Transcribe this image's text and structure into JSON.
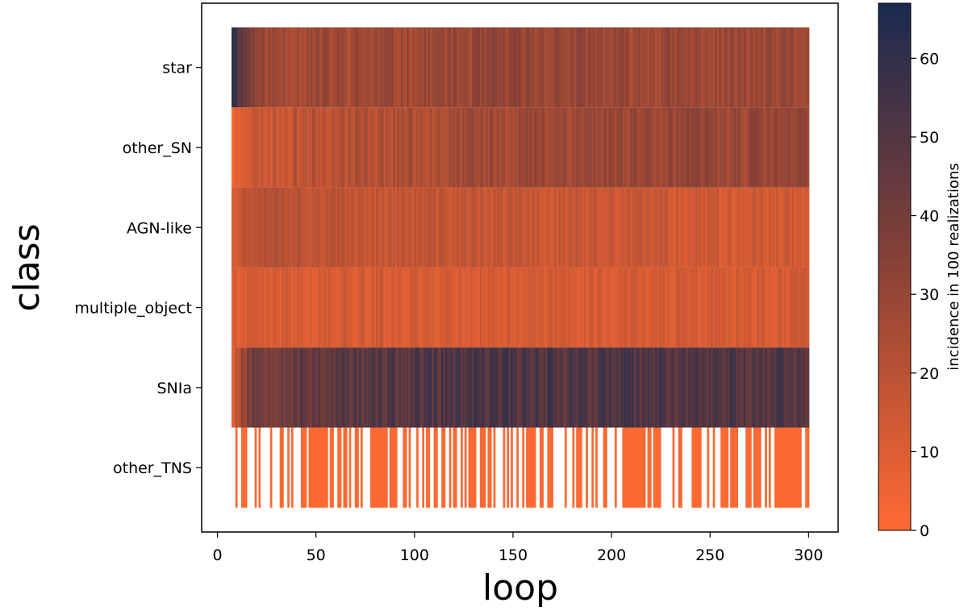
{
  "chart_data": {
    "type": "heatmap",
    "title": "",
    "xlabel": "loop",
    "ylabel": "class",
    "colorbar_label": "incidence in 100 realizations",
    "xlim": [
      -8,
      315
    ],
    "x_ticks": [
      0,
      50,
      100,
      150,
      200,
      250,
      300
    ],
    "x_tick_labels": [
      "0",
      "50",
      "100",
      "150",
      "200",
      "250",
      "300"
    ],
    "colorbar_range": [
      0,
      67
    ],
    "colorbar_ticks": [
      0,
      10,
      20,
      30,
      40,
      50,
      60
    ],
    "colorbar_tick_labels": [
      "0",
      "10",
      "20",
      "30",
      "40",
      "50",
      "60"
    ],
    "colormap": {
      "low": "#ff6a33",
      "mid": "#8a4236",
      "high": "#1a2a50"
    },
    "n_loops": 300,
    "rows": [
      {
        "name": "star",
        "profile": [
          [
            0,
            64
          ],
          [
            5,
            46
          ],
          [
            15,
            28
          ],
          [
            60,
            27
          ],
          [
            150,
            30
          ],
          [
            220,
            28
          ],
          [
            299,
            28
          ]
        ],
        "noise": 12,
        "zero_frac": 0.0,
        "seed": 11
      },
      {
        "name": "other_SN",
        "profile": [
          [
            0,
            2
          ],
          [
            5,
            14
          ],
          [
            40,
            20
          ],
          [
            150,
            28
          ],
          [
            220,
            30
          ],
          [
            299,
            29
          ]
        ],
        "noise": 12,
        "zero_frac": 0.0,
        "seed": 23
      },
      {
        "name": "AGN-like",
        "profile": [
          [
            0,
            14
          ],
          [
            15,
            24
          ],
          [
            50,
            18
          ],
          [
            150,
            16
          ],
          [
            250,
            14
          ],
          [
            299,
            14
          ]
        ],
        "noise": 10,
        "zero_frac": 0.0,
        "seed": 37
      },
      {
        "name": "multiple_object",
        "profile": [
          [
            0,
            10
          ],
          [
            50,
            12
          ],
          [
            150,
            12
          ],
          [
            250,
            12
          ],
          [
            299,
            12
          ]
        ],
        "noise": 9,
        "zero_frac": 0.0,
        "seed": 41
      },
      {
        "name": "SNIa",
        "profile": [
          [
            0,
            12
          ],
          [
            10,
            42
          ],
          [
            60,
            47
          ],
          [
            150,
            52
          ],
          [
            230,
            50
          ],
          [
            299,
            51
          ]
        ],
        "noise": 16,
        "zero_frac": 0.0,
        "seed": 53
      },
      {
        "name": "other_TNS",
        "profile": [
          [
            0,
            1
          ],
          [
            299,
            1
          ]
        ],
        "noise": 0,
        "zero_frac": 0.45,
        "seed": 67
      }
    ]
  }
}
